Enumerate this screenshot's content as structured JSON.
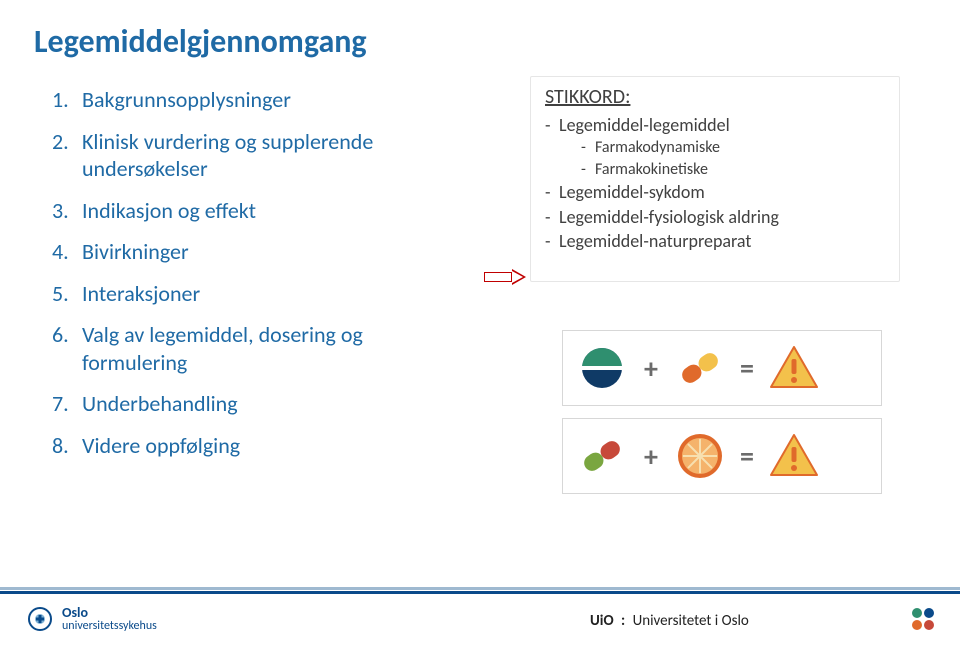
{
  "title": {
    "text": "Legemiddelgjennomgang",
    "color": "#1f6aa5"
  },
  "left_list": {
    "color": "#1f6aa5",
    "items": [
      "Bakgrunnsopplysninger",
      "Klinisk vurdering og supplerende undersøkelser",
      "Indikasjon og effekt",
      "Bivirkninger",
      "Interaksjoner",
      "Valg av legemiddel, dosering og formulering",
      "Underbehandling",
      "Videre oppfølging"
    ]
  },
  "right_box": {
    "title": "STIKKORD:",
    "bullets": [
      {
        "text": "Legemiddel-legemiddel",
        "sub": [
          "Farmakodynamiske",
          "Farmakokinetiske"
        ]
      },
      {
        "text": "Legemiddel-sykdom"
      },
      {
        "text": "Legemiddel-fysiologisk aldring"
      },
      {
        "text": "Legemiddel-naturpreparat"
      }
    ]
  },
  "infographic": {
    "rows": [
      {
        "left": {
          "type": "pill-round",
          "colors": [
            "#2f8f6f",
            "#0f3a66"
          ]
        },
        "middle": {
          "type": "capsule",
          "colors": [
            "#e06a2b",
            "#f3c14b"
          ]
        },
        "right": {
          "type": "warning",
          "bg": "#f3c14b",
          "mark": "#e06a2b"
        },
        "op": "+",
        "eq": "="
      },
      {
        "left": {
          "type": "capsule",
          "colors": [
            "#7aa640",
            "#c7493a"
          ]
        },
        "middle": {
          "type": "fruit",
          "outer": "#e06a2b",
          "inner": "#f5b36b",
          "seeds": "#f7e0b0"
        },
        "right": {
          "type": "warning",
          "bg": "#f3c14b",
          "mark": "#e06a2b"
        },
        "op": "+",
        "eq": "="
      }
    ]
  },
  "footer": {
    "left_name": "Oslo",
    "left_sub": "universitetssykehus",
    "uio_prefix": "UiO",
    "uio_sep": ":",
    "uio_text": "Universitetet i Oslo",
    "dots": [
      "#2f8f6f",
      "#0a4a8a",
      "#e06a2b",
      "#c7493a"
    ]
  }
}
